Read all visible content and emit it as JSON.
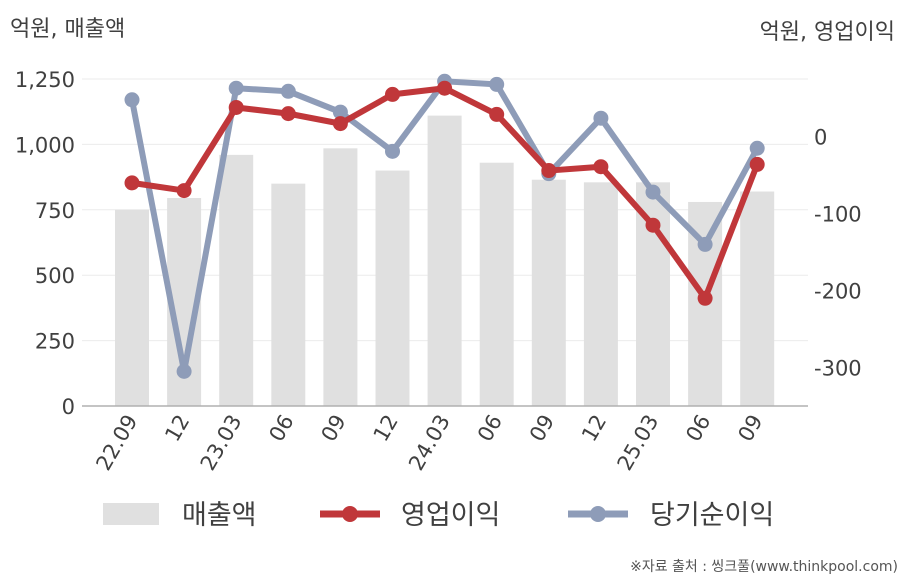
{
  "chart_data": {
    "type": "bar+line",
    "left_axis_label": "억원, 매출액",
    "right_axis_label": "억원, 영업이익",
    "categories": [
      "22.09",
      "12",
      "23.03",
      "06",
      "09",
      "12",
      "24.03",
      "06",
      "09",
      "12",
      "25.03",
      "06",
      "09"
    ],
    "left_ylim": [
      0,
      1250
    ],
    "left_ticks": [
      "0",
      "250",
      "500",
      "750",
      "1,000",
      "1,250"
    ],
    "left_tick_values": [
      0,
      250,
      500,
      750,
      1000,
      1250
    ],
    "right_ylim": [
      -350,
      75
    ],
    "right_ticks": [
      "-300",
      "-200",
      "-100",
      "0"
    ],
    "right_tick_values": [
      -300,
      -200,
      -100,
      0
    ],
    "grid": true,
    "legend_position": "bottom",
    "series": [
      {
        "name": "매출액",
        "kind": "bar",
        "axis": "left",
        "color": "#e0e0e0",
        "values": [
          750,
          795,
          960,
          850,
          985,
          900,
          1110,
          930,
          865,
          855,
          855,
          780,
          820
        ]
      },
      {
        "name": "영업이익",
        "kind": "line",
        "axis": "right",
        "color": "#c0373a",
        "values": [
          -60,
          -70,
          38,
          30,
          17,
          55,
          63,
          29,
          -44,
          -39,
          -115,
          -210,
          -36
        ]
      },
      {
        "name": "당기순이익",
        "kind": "line",
        "axis": "right",
        "color": "#8e9cb8",
        "values": [
          48,
          -305,
          63,
          59,
          32,
          -19,
          72,
          68,
          -48,
          24,
          -72,
          -140,
          -15
        ]
      }
    ]
  },
  "source": "※자료 출처 : 씽크풀(www.thinkpool.com)"
}
